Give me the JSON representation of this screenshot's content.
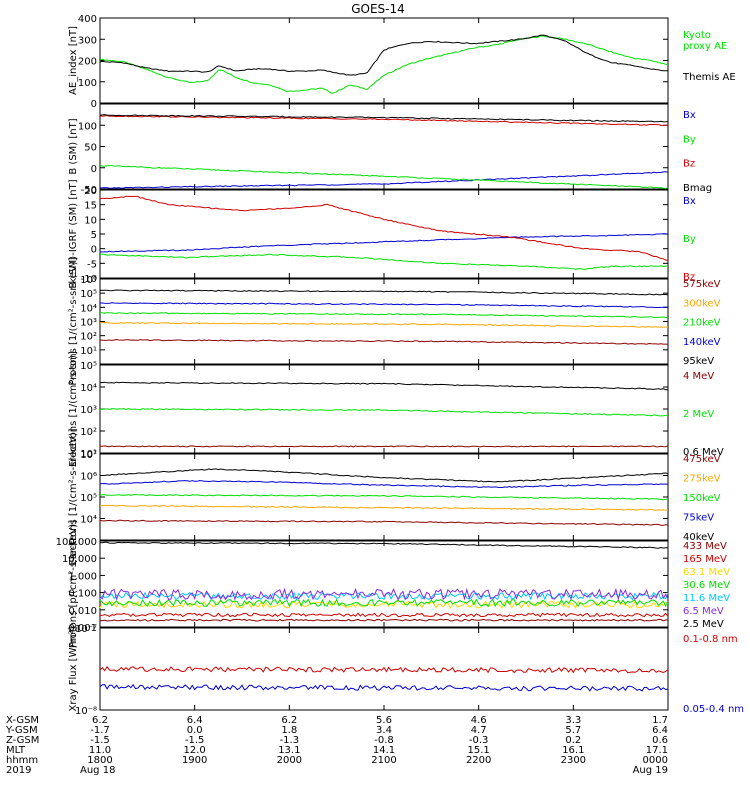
{
  "title": "GOES-14",
  "time_axis": {
    "start": "1800",
    "end": "0000",
    "ticks": [
      "1800",
      "1900",
      "2000",
      "2100",
      "2200",
      "2300",
      "0000"
    ]
  },
  "footer": {
    "row_labels": [
      "X-GSM",
      "Y-GSM",
      "Z-GSM",
      "MLT",
      "hhmm",
      "2019"
    ],
    "rows": [
      [
        "6.2",
        "6.4",
        "6.2",
        "5.6",
        "4.6",
        "3.3",
        "1.7"
      ],
      [
        "-1.7",
        "0.0",
        "1.8",
        "3.4",
        "4.7",
        "5.7",
        "6.4"
      ],
      [
        "-1.5",
        "-1.5",
        "-1.3",
        "-0.8",
        "-0.3",
        "0.2",
        "0.6"
      ],
      [
        "11.0",
        "12.0",
        "13.1",
        "14.1",
        "15.1",
        "16.1",
        "17.1"
      ],
      [
        "1800",
        "1900",
        "2000",
        "2100",
        "2200",
        "2300",
        "0000"
      ]
    ],
    "date_start": "Aug 18",
    "date_end": "Aug 19"
  },
  "chart_data": [
    {
      "type": "line",
      "ylabel": "AE_index [nT]",
      "ylim": [
        0,
        400
      ],
      "log": false,
      "ticks": [
        0,
        100,
        200,
        300,
        400
      ],
      "tick_labels": [
        "0",
        "100",
        "200",
        "300",
        "400"
      ],
      "series": [
        {
          "name": "Kyoto proxy AE",
          "legend": [
            "Kyoto",
            "proxy AE"
          ],
          "color": "#00e000",
          "x": [
            0,
            0.04,
            0.08,
            0.12,
            0.16,
            0.19,
            0.21,
            0.24,
            0.27,
            0.3,
            0.33,
            0.36,
            0.39,
            0.41,
            0.44,
            0.47,
            0.5,
            0.54,
            0.58,
            0.62,
            0.66,
            0.7,
            0.74,
            0.78,
            0.82,
            0.86,
            0.9,
            0.94,
            0.97,
            1.0
          ],
          "y": [
            205,
            195,
            160,
            120,
            95,
            105,
            160,
            120,
            95,
            85,
            55,
            60,
            70,
            45,
            85,
            65,
            130,
            180,
            210,
            235,
            260,
            275,
            300,
            315,
            300,
            275,
            240,
            210,
            200,
            180
          ]
        },
        {
          "name": "Themis AE",
          "legend": [
            "Themis AE"
          ],
          "color": "#000000",
          "x": [
            0,
            0.04,
            0.08,
            0.12,
            0.16,
            0.19,
            0.21,
            0.24,
            0.27,
            0.3,
            0.33,
            0.36,
            0.39,
            0.41,
            0.44,
            0.47,
            0.5,
            0.54,
            0.58,
            0.62,
            0.66,
            0.7,
            0.74,
            0.78,
            0.82,
            0.86,
            0.9,
            0.94,
            0.97,
            1.0
          ],
          "y": [
            195,
            190,
            165,
            150,
            150,
            145,
            175,
            150,
            160,
            160,
            150,
            150,
            155,
            145,
            130,
            140,
            250,
            280,
            290,
            285,
            280,
            290,
            300,
            320,
            290,
            230,
            190,
            175,
            160,
            150
          ]
        }
      ]
    },
    {
      "type": "line",
      "ylabel": "B (SM) [nT]",
      "ylim": [
        -50,
        150
      ],
      "log": false,
      "ticks": [
        -50,
        0,
        50,
        100
      ],
      "tick_labels": [
        "-50",
        "0",
        "50",
        "100"
      ],
      "series": [
        {
          "name": "Bx",
          "legend": [
            "Bx"
          ],
          "color": "#0000d0",
          "x": [
            0,
            0.5,
            1.0
          ],
          "y": [
            -48,
            -38,
            -10
          ]
        },
        {
          "name": "By",
          "legend": [
            "By"
          ],
          "color": "#00e000",
          "x": [
            0,
            0.5,
            1.0
          ],
          "y": [
            5,
            -20,
            -48
          ]
        },
        {
          "name": "Bz",
          "legend": [
            "Bz"
          ],
          "color": "#d00000",
          "x": [
            0,
            0.5,
            1.0
          ],
          "y": [
            122,
            114,
            100
          ]
        },
        {
          "name": "Bmag",
          "legend": [
            "Bmag"
          ],
          "color": "#000000",
          "x": [
            0,
            0.5,
            1.0
          ],
          "y": [
            124,
            118,
            108
          ]
        }
      ]
    },
    {
      "type": "line",
      "ylabel": "B (SM)-IGRF (SM) [nT]",
      "ylim": [
        -10,
        20
      ],
      "log": false,
      "ticks": [
        -10,
        -5,
        0,
        5,
        10,
        15,
        20
      ],
      "tick_labels": [
        "-10",
        "-5",
        "0",
        "5",
        "10",
        "15",
        "20"
      ],
      "series": [
        {
          "name": "Bx",
          "legend": [
            "Bx"
          ],
          "color": "#0000d0",
          "x": [
            0,
            0.15,
            0.3,
            0.45,
            0.6,
            0.75,
            0.9,
            1.0
          ],
          "y": [
            -1,
            -0.5,
            1,
            2,
            3,
            4,
            4.5,
            5
          ]
        },
        {
          "name": "By",
          "legend": [
            "By"
          ],
          "color": "#00e000",
          "x": [
            0,
            0.15,
            0.3,
            0.45,
            0.6,
            0.75,
            0.85,
            0.9,
            1.0
          ],
          "y": [
            -2,
            -3,
            -2,
            -3,
            -5,
            -6,
            -7,
            -6,
            -6
          ]
        },
        {
          "name": "Bz",
          "legend": [
            "Bz"
          ],
          "color": "#d00000",
          "x": [
            0,
            0.06,
            0.12,
            0.25,
            0.35,
            0.4,
            0.5,
            0.6,
            0.72,
            0.85,
            0.95,
            1.0
          ],
          "y": [
            17,
            18,
            15,
            13,
            14,
            15,
            10,
            6,
            4,
            0,
            -1,
            -4
          ]
        }
      ]
    },
    {
      "type": "line",
      "ylabel": "Protons [1/(cm²-s-sr-keV)]",
      "ylim": [
        0,
        6
      ],
      "log": true,
      "ticks": [
        1,
        2,
        3,
        4,
        5,
        6
      ],
      "tick_labels": [
        "10¹",
        "10²",
        "10³",
        "10⁴",
        "10⁵",
        "10⁶"
      ],
      "series": [
        {
          "name": "575keV",
          "legend": [
            "575keV"
          ],
          "color": "#8b0000",
          "x": [
            0,
            0.6,
            1.0
          ],
          "y": [
            1.7,
            1.6,
            1.4
          ]
        },
        {
          "name": "300keV",
          "legend": [
            "300keV"
          ],
          "color": "#ffa500",
          "x": [
            0,
            0.6,
            1.0
          ],
          "y": [
            2.9,
            2.8,
            2.6
          ]
        },
        {
          "name": "210keV",
          "legend": [
            "210keV"
          ],
          "color": "#00e000",
          "x": [
            0,
            0.6,
            1.0
          ],
          "y": [
            3.6,
            3.5,
            3.3
          ]
        },
        {
          "name": "140keV",
          "legend": [
            "140keV"
          ],
          "color": "#0000d0",
          "x": [
            0,
            0.6,
            1.0
          ],
          "y": [
            4.3,
            4.2,
            4.0
          ]
        },
        {
          "name": "95keV",
          "legend": [
            "95keV"
          ],
          "color": "#000000",
          "x": [
            0,
            0.6,
            1.0
          ],
          "y": [
            5.2,
            5.1,
            4.9
          ]
        }
      ]
    },
    {
      "type": "line",
      "ylabel": "Electrons [1/(cm²-s-sr)]",
      "ylim": [
        1,
        5
      ],
      "log": true,
      "ticks": [
        1,
        2,
        3,
        4,
        5
      ],
      "tick_labels": [
        "10¹",
        "10²",
        "10³",
        "10⁴",
        "10⁵"
      ],
      "series": [
        {
          "name": "4 MeV",
          "legend": [
            "4 MeV"
          ],
          "color": "#8b0000",
          "x": [
            0,
            1.0
          ],
          "y": [
            1.3,
            1.3
          ]
        },
        {
          "name": "2 MeV",
          "legend": [
            "2 MeV"
          ],
          "color": "#00e000",
          "x": [
            0,
            0.5,
            1.0
          ],
          "y": [
            3.0,
            2.95,
            2.7
          ]
        },
        {
          "name": "0.6 MeV",
          "legend": [
            "0.6 MeV"
          ],
          "color": "#000000",
          "x": [
            0,
            0.5,
            1.0
          ],
          "y": [
            4.2,
            4.15,
            3.9
          ]
        }
      ]
    },
    {
      "type": "line",
      "ylabel": "Electrons [1/(cm²-s-sr-keV)]",
      "ylim": [
        3,
        7
      ],
      "log": true,
      "ticks": [
        4,
        5,
        6,
        7
      ],
      "tick_labels": [
        "10⁴",
        "10⁵",
        "10⁶",
        "10⁷"
      ],
      "series": [
        {
          "name": "475keV",
          "legend": [
            "475keV"
          ],
          "color": "#8b0000",
          "x": [
            0,
            0.5,
            1.0
          ],
          "y": [
            3.9,
            3.85,
            3.7
          ]
        },
        {
          "name": "275keV",
          "legend": [
            "275keV"
          ],
          "color": "#ffa500",
          "x": [
            0,
            0.5,
            1.0
          ],
          "y": [
            4.6,
            4.5,
            4.4
          ]
        },
        {
          "name": "150keV",
          "legend": [
            "150keV"
          ],
          "color": "#00e000",
          "x": [
            0,
            0.5,
            1.0
          ],
          "y": [
            5.1,
            5.05,
            4.9
          ]
        },
        {
          "name": "75keV",
          "legend": [
            "75keV"
          ],
          "color": "#0000d0",
          "x": [
            0,
            0.15,
            0.3,
            0.5,
            0.7,
            0.85,
            1.0
          ],
          "y": [
            5.6,
            5.75,
            5.7,
            5.55,
            5.45,
            5.55,
            5.6
          ]
        },
        {
          "name": "40keV",
          "legend": [
            "40keV"
          ],
          "color": "#000000",
          "x": [
            0,
            0.2,
            0.3,
            0.5,
            0.7,
            0.85,
            1.0
          ],
          "y": [
            6.0,
            6.3,
            6.2,
            5.9,
            5.7,
            5.9,
            6.1
          ]
        }
      ]
    },
    {
      "type": "line",
      "ylabel": "Protons [p/(cm²-s-sr-keV)]",
      "ylim": [
        -3,
        2
      ],
      "log": true,
      "ticks": [
        -3,
        -2,
        -1,
        0,
        1,
        2
      ],
      "tick_labels": [
        "0.001",
        "0.010",
        "0.100",
        "1.000",
        "10.000",
        "100.000"
      ],
      "series": [
        {
          "name": "433 MeV",
          "legend": [
            "433 MeV"
          ],
          "color": "#8b0000",
          "x": [
            0,
            1.0
          ],
          "y": [
            -2.6,
            -2.6
          ],
          "noise": 0.05
        },
        {
          "name": "165 MeV",
          "legend": [
            "165 MeV"
          ],
          "color": "#d00000",
          "x": [
            0,
            1.0
          ],
          "y": [
            -2.3,
            -2.3
          ],
          "noise": 0.1
        },
        {
          "name": "63.1 MeV",
          "legend": [
            "63.1 MeV"
          ],
          "color": "#ffd700",
          "x": [
            0,
            1.0
          ],
          "y": [
            -1.7,
            -1.7
          ],
          "noise": 0.2
        },
        {
          "name": "30.6 MeV",
          "legend": [
            "30.6 MeV"
          ],
          "color": "#00e000",
          "x": [
            0,
            1.0
          ],
          "y": [
            -1.6,
            -1.6
          ],
          "noise": 0.2
        },
        {
          "name": "11.6 MeV",
          "legend": [
            "11.6 MeV"
          ],
          "color": "#00c8ff",
          "x": [
            0,
            1.0
          ],
          "y": [
            -1.2,
            -1.2
          ],
          "noise": 0.2
        },
        {
          "name": "6.5 MeV",
          "legend": [
            "6.5 MeV"
          ],
          "color": "#8a2be2",
          "x": [
            0,
            1.0
          ],
          "y": [
            -1.1,
            -1.1
          ],
          "noise": 0.3
        },
        {
          "name": "2.5 MeV",
          "legend": [
            "2.5 MeV"
          ],
          "color": "#000000",
          "x": [
            0,
            0.5,
            1.0
          ],
          "y": [
            1.9,
            1.85,
            1.6
          ]
        }
      ]
    },
    {
      "type": "line",
      "ylabel": "Xray Flux [W/m²]",
      "ylim": [
        -8,
        -7
      ],
      "log": true,
      "ticks": [
        -8,
        -7
      ],
      "tick_labels": [
        "10⁻⁸",
        "10⁻⁷"
      ],
      "series": [
        {
          "name": "0.1-0.8 nm",
          "legend": [
            "0.1-0.8 nm"
          ],
          "color": "#d00000",
          "x": [
            0,
            1.0
          ],
          "y": [
            -7.5,
            -7.52
          ],
          "noise": 0.03
        },
        {
          "name": "0.05-0.4 nm",
          "legend": [
            "0.05-0.4 nm"
          ],
          "color": "#0000d0",
          "x": [
            0,
            1.0
          ],
          "y": [
            -7.72,
            -7.74
          ],
          "noise": 0.03
        }
      ]
    }
  ]
}
